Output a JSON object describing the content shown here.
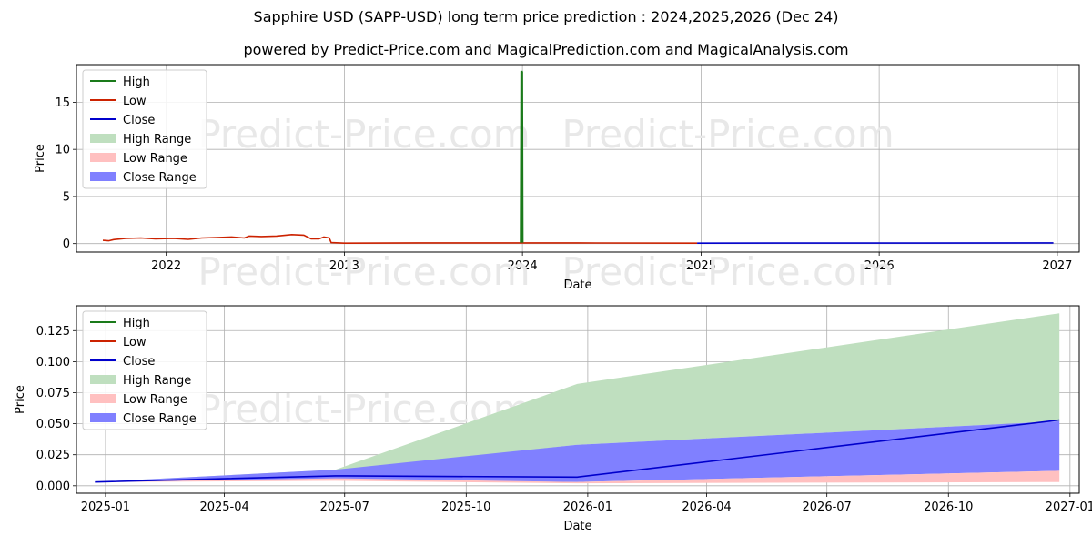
{
  "page": {
    "title": "Sapphire USD (SAPP-USD) long term price prediction : 2024,2025,2026 (Dec 24)",
    "subtitle": "powered by Predict-Price.com and MagicalPrediction.com and MagicalAnalysis.com",
    "watermark": "Predict-Price.com"
  },
  "colors": {
    "high": "#1a7a1a",
    "low": "#cc2200",
    "close": "#0000cc",
    "high_range": "#bfdfbf",
    "low_range": "#ffc0c0",
    "close_range": "#8080ff",
    "grid": "#b0b0b0"
  },
  "legend": {
    "placement": "upper-left",
    "items": [
      {
        "label": "High",
        "kind": "line",
        "color_key": "high"
      },
      {
        "label": "Low",
        "kind": "line",
        "color_key": "low"
      },
      {
        "label": "Close",
        "kind": "line",
        "color_key": "close"
      },
      {
        "label": "High Range",
        "kind": "patch",
        "color_key": "high_range"
      },
      {
        "label": "Low Range",
        "kind": "patch",
        "color_key": "low_range"
      },
      {
        "label": "Close Range",
        "kind": "patch",
        "color_key": "close_range"
      }
    ]
  },
  "chart_data": [
    {
      "type": "line",
      "xlabel": "Date",
      "ylabel": "Price",
      "x_ticks": [
        "2022",
        "2023",
        "2024",
        "2025",
        "2026",
        "2027"
      ],
      "y_ticks": [
        "0",
        "5",
        "10",
        "15"
      ],
      "xlim": [
        "2021-07-01",
        "2027-02-15"
      ],
      "ylim": [
        -0.9,
        19.0
      ],
      "grid": true,
      "series": [
        {
          "name": "Low",
          "color_key": "low",
          "points": [
            [
              "2021-08-24",
              0.35
            ],
            [
              "2021-09-05",
              0.3
            ],
            [
              "2021-09-15",
              0.42
            ],
            [
              "2021-10-10",
              0.55
            ],
            [
              "2021-11-10",
              0.6
            ],
            [
              "2021-12-10",
              0.5
            ],
            [
              "2022-01-15",
              0.55
            ],
            [
              "2022-02-15",
              0.45
            ],
            [
              "2022-03-15",
              0.6
            ],
            [
              "2022-04-15",
              0.65
            ],
            [
              "2022-05-15",
              0.7
            ],
            [
              "2022-06-10",
              0.6
            ],
            [
              "2022-06-20",
              0.8
            ],
            [
              "2022-07-15",
              0.75
            ],
            [
              "2022-08-15",
              0.8
            ],
            [
              "2022-09-15",
              0.95
            ],
            [
              "2022-10-10",
              0.9
            ],
            [
              "2022-10-25",
              0.5
            ],
            [
              "2022-11-10",
              0.5
            ],
            [
              "2022-11-20",
              0.7
            ],
            [
              "2022-12-01",
              0.6
            ],
            [
              "2022-12-05",
              0.1
            ],
            [
              "2023-01-01",
              0.05
            ],
            [
              "2023-06-01",
              0.08
            ],
            [
              "2024-01-01",
              0.08
            ],
            [
              "2024-06-01",
              0.07
            ],
            [
              "2024-12-24",
              0.05
            ]
          ]
        },
        {
          "name": "High",
          "color_key": "high",
          "points": [
            [
              "2023-12-29",
              0.1
            ],
            [
              "2023-12-30",
              18.3
            ],
            [
              "2023-12-31",
              18.2
            ],
            [
              "2024-01-01",
              0.1
            ]
          ]
        },
        {
          "name": "Close",
          "color_key": "close",
          "points": [
            [
              "2024-12-24",
              0.05
            ],
            [
              "2025-06-01",
              0.06
            ],
            [
              "2026-01-01",
              0.06
            ],
            [
              "2026-12-24",
              0.08
            ]
          ]
        }
      ]
    },
    {
      "type": "area",
      "xlabel": "Date",
      "ylabel": "Price",
      "x_ticks": [
        "2025-01",
        "2025-04",
        "2025-07",
        "2025-10",
        "2026-01",
        "2026-04",
        "2026-07",
        "2026-10",
        "2027-01"
      ],
      "y_ticks": [
        "0.000",
        "0.025",
        "0.050",
        "0.075",
        "0.100",
        "0.125"
      ],
      "xlim": [
        "2024-12-10",
        "2027-01-08"
      ],
      "ylim": [
        -0.006,
        0.145
      ],
      "grid": true,
      "ranges": [
        {
          "name": "High Range",
          "color_key": "high_range",
          "dates": [
            "2024-12-24",
            "2025-06-24",
            "2025-12-24",
            "2026-12-24"
          ],
          "lower": [
            0.003,
            0.012,
            0.033,
            0.052
          ],
          "upper": [
            0.003,
            0.013,
            0.082,
            0.139
          ]
        },
        {
          "name": "Close Range",
          "color_key": "close_range",
          "dates": [
            "2024-12-24",
            "2025-06-24",
            "2025-12-24",
            "2026-12-24"
          ],
          "lower": [
            0.003,
            0.005,
            0.003,
            0.012
          ],
          "upper": [
            0.003,
            0.013,
            0.033,
            0.052
          ]
        },
        {
          "name": "Low Range",
          "color_key": "low_range",
          "dates": [
            "2024-12-24",
            "2025-06-24",
            "2025-12-24",
            "2026-12-24"
          ],
          "lower": [
            0.003,
            0.004,
            0.002,
            0.003
          ],
          "upper": [
            0.003,
            0.006,
            0.003,
            0.012
          ]
        }
      ],
      "series": [
        {
          "name": "Close",
          "color_key": "close",
          "points": [
            [
              "2024-12-24",
              0.003
            ],
            [
              "2025-06-24",
              0.008
            ],
            [
              "2025-12-24",
              0.007
            ],
            [
              "2026-12-24",
              0.053
            ]
          ]
        }
      ]
    }
  ]
}
